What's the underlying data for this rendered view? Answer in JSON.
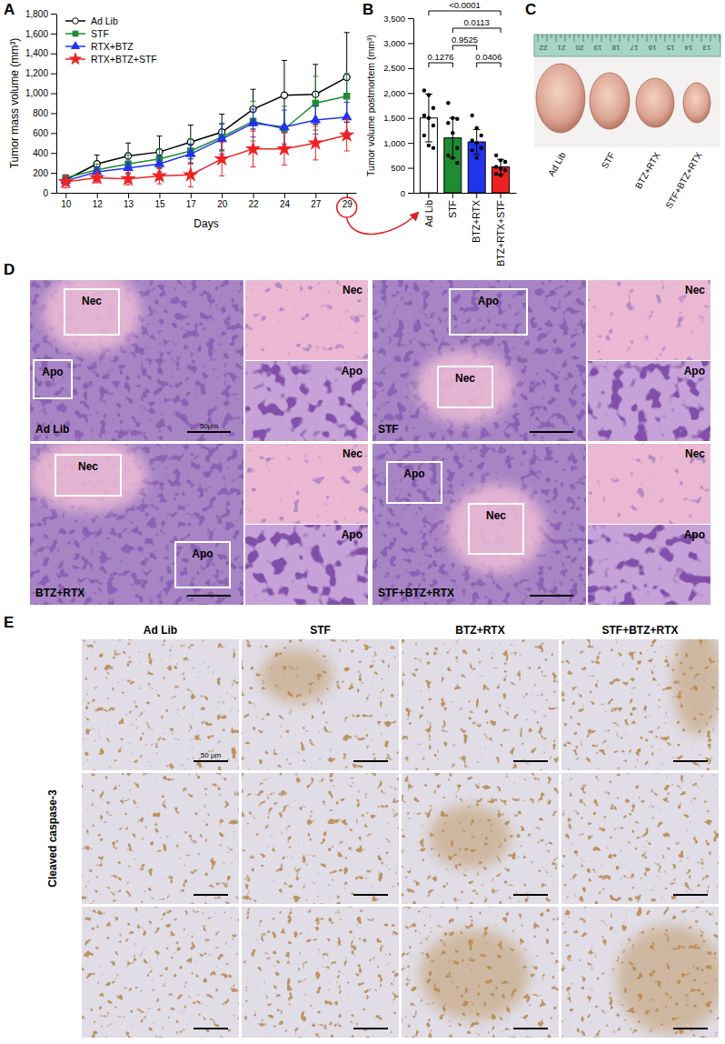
{
  "chart_data": [
    {
      "type": "line",
      "x_label": "Days",
      "y_label": "Tumor mass volume (mm³)",
      "categories": [
        "10",
        "12",
        "13",
        "15",
        "17",
        "20",
        "22",
        "24",
        "27",
        "29"
      ],
      "ylim": [
        0,
        1800
      ],
      "yticks": [
        0,
        200,
        400,
        600,
        800,
        {
          "value": 1000,
          "label": "1,000"
        },
        {
          "value": 1200,
          "label": "1,200"
        },
        {
          "value": 1400,
          "label": "1,400"
        },
        {
          "value": 1600,
          "label": "1,600"
        },
        {
          "value": 1800,
          "label": "1,800"
        }
      ],
      "legend": "upper left",
      "series": [
        {
          "name": "Ad Lib",
          "color": "#000000",
          "marker": "circle-open",
          "line_style": "solid",
          "values": [
            130,
            290,
            370,
            410,
            510,
            610,
            840,
            980,
            990,
            1160
          ],
          "errors": [
            40,
            90,
            130,
            160,
            170,
            180,
            200,
            350,
            300,
            450
          ]
        },
        {
          "name": "STF",
          "color": "#1e8c32",
          "marker": "square",
          "line_style": "solid",
          "values": [
            150,
            230,
            290,
            340,
            420,
            560,
            720,
            640,
            900,
            970
          ],
          "errors": [
            30,
            60,
            90,
            100,
            120,
            140,
            200,
            230,
            270,
            230
          ]
        },
        {
          "name": "RTX+BTZ",
          "color": "#2233ee",
          "marker": "triangle",
          "line_style": "solid",
          "values": [
            120,
            210,
            250,
            290,
            390,
            540,
            700,
            660,
            730,
            760
          ],
          "errors": [
            30,
            50,
            60,
            80,
            100,
            150,
            140,
            170,
            140,
            150
          ]
        },
        {
          "name": "RTX+BTZ+STF",
          "color": "#ee2222",
          "marker": "star",
          "line_style": "solid",
          "values": [
            110,
            150,
            140,
            170,
            180,
            340,
            440,
            440,
            500,
            580
          ],
          "errors": [
            60,
            50,
            60,
            80,
            120,
            170,
            180,
            160,
            170,
            160
          ]
        }
      ]
    },
    {
      "type": "bar",
      "y_label": "Tumor volume postmortem (mm³)",
      "categories": [
        "Ad Lib",
        "STF",
        "BTZ+RTX",
        "BTZ+RTX+STF"
      ],
      "values": [
        1500,
        1100,
        1020,
        520
      ],
      "errors": [
        480,
        400,
        250,
        150
      ],
      "points": [
        [
          2050,
          1960,
          1700,
          1550,
          1500,
          1350,
          1150,
          950,
          900
        ],
        [
          1800,
          1500,
          1480,
          1400,
          1200,
          900,
          750,
          700,
          600
        ],
        [
          1550,
          1300,
          1150,
          1050,
          1000,
          900,
          850,
          700
        ],
        [
          750,
          650,
          620,
          520,
          480,
          450,
          380,
          350
        ]
      ],
      "colors": [
        "#ffffff",
        "#1e8c32",
        "#2233ee",
        "#ee2222"
      ],
      "ylim": [
        0,
        3500
      ],
      "yticks": [
        0,
        500,
        {
          "value": 1000,
          "label": "1,000"
        },
        {
          "value": 1500,
          "label": "1,500"
        },
        {
          "value": 2000,
          "label": "2,000"
        },
        {
          "value": 2500,
          "label": "2,500"
        },
        {
          "value": 3000,
          "label": "3,000"
        },
        {
          "value": 3500,
          "label": "3,500"
        }
      ],
      "comparisons": [
        {
          "pair": [
            0,
            3
          ],
          "label": "<0.0001"
        },
        {
          "pair": [
            1,
            3
          ],
          "label": "0.0113"
        },
        {
          "pair": [
            1,
            2
          ],
          "label": "0.9525"
        },
        {
          "pair": [
            0,
            1
          ],
          "label": "0.1276"
        },
        {
          "pair": [
            2,
            3
          ],
          "label": "0.0406"
        }
      ]
    }
  ],
  "figure": {
    "panel_labels": [
      "A",
      "B",
      "C",
      "D",
      "E"
    ],
    "photo": {
      "ruler_labels": [
        "22",
        "21",
        "20",
        "19",
        "18",
        "17",
        "16",
        "15",
        "14",
        "13"
      ],
      "labels": [
        "Ad Lib",
        "STF",
        "BTZ+RTX",
        "STF+BTZ+RTX"
      ]
    },
    "histology": {
      "scale_bar": "50μm",
      "panels": [
        {
          "label": "Ad Lib",
          "boxes": [
            "Nec",
            "Apo"
          ],
          "insets": [
            "Nec",
            "Apo"
          ]
        },
        {
          "label": "STF",
          "boxes": [
            "Apo",
            "Nec"
          ],
          "insets": [
            "Nec",
            "Apo"
          ]
        },
        {
          "label": "BTZ+RTX",
          "boxes": [
            "Nec",
            "Apo"
          ],
          "insets": [
            "Nec",
            "Apo"
          ]
        },
        {
          "label": "STF+BTZ+RTX",
          "boxes": [
            "Apo",
            "Nec"
          ],
          "insets": [
            "Nec",
            "Apo"
          ]
        }
      ]
    },
    "ihc": {
      "columns": [
        "Ad Lib",
        "STF",
        "BTZ+RTX",
        "STF+BTZ+RTX"
      ],
      "row_label": "Cleaved caspase-3",
      "scale_bar": "50 μm"
    }
  }
}
